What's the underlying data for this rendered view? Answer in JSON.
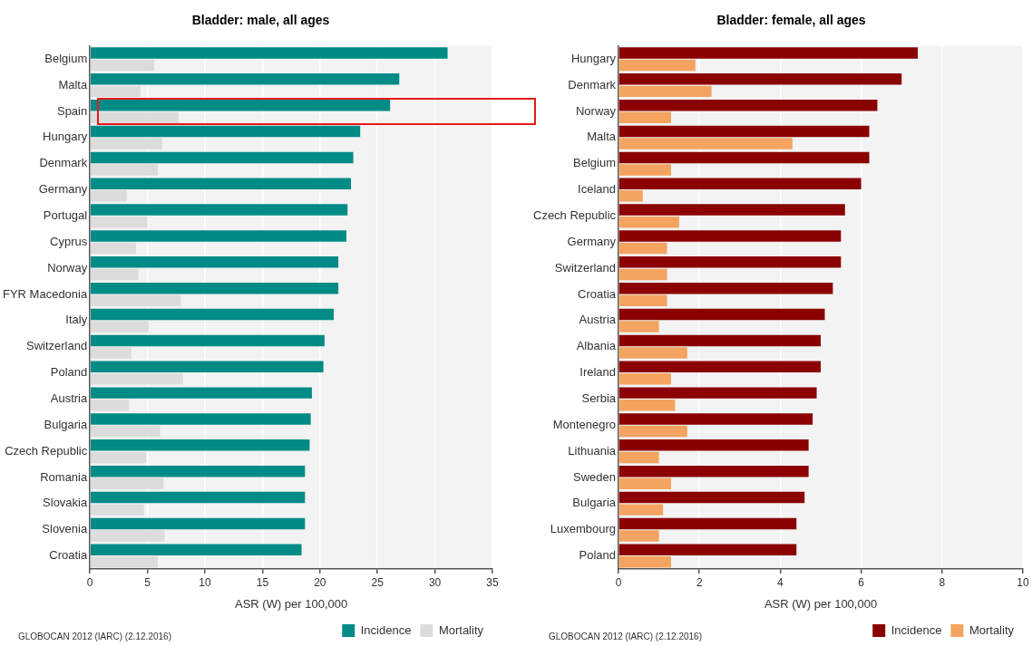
{
  "chart_data": [
    {
      "type": "bar",
      "orientation": "horizontal",
      "title": "Bladder: male, all ages",
      "xlabel": "ASR (W) per 100,000",
      "categories": [
        "Belgium",
        "Malta",
        "Spain",
        "Hungary",
        "Denmark",
        "Germany",
        "Portugal",
        "Cyprus",
        "Norway",
        "FYR Macedonia",
        "Italy",
        "Switzerland",
        "Poland",
        "Austria",
        "Bulgaria",
        "Czech Republic",
        "Romania",
        "Slovakia",
        "Slovenia",
        "Croatia"
      ],
      "series": [
        {
          "name": "Incidence",
          "color": "#008b87",
          "values": [
            31.1,
            26.9,
            26.1,
            23.5,
            22.9,
            22.7,
            22.4,
            22.3,
            21.6,
            21.6,
            21.2,
            20.4,
            20.3,
            19.3,
            19.2,
            19.1,
            18.7,
            18.7,
            18.7,
            18.4
          ]
        },
        {
          "name": "Mortality",
          "color": "#dcdcdc",
          "values": [
            5.6,
            4.4,
            7.7,
            6.3,
            5.9,
            3.2,
            5.0,
            4.0,
            4.2,
            7.9,
            5.1,
            3.6,
            8.1,
            3.4,
            6.1,
            4.9,
            6.4,
            4.7,
            6.5,
            5.9
          ]
        }
      ],
      "xlim": [
        0,
        35
      ],
      "xticks": [
        0,
        5,
        10,
        15,
        20,
        25,
        30,
        35
      ],
      "grid": "x",
      "legend": "bottom right",
      "annotations": [
        "GLOBOCAN 2012 (IARC) (2.12.2016)"
      ]
    },
    {
      "type": "bar",
      "orientation": "horizontal",
      "title": "Bladder: female, all ages",
      "xlabel": "ASR (W) per 100,000",
      "categories": [
        "Hungary",
        "Denmark",
        "Norway",
        "Malta",
        "Belgium",
        "Iceland",
        "Czech Republic",
        "Germany",
        "Switzerland",
        "Croatia",
        "Austria",
        "Albania",
        "Ireland",
        "Serbia",
        "Montenegro",
        "Lithuania",
        "Sweden",
        "Bulgaria",
        "Luxembourg",
        "Poland"
      ],
      "series": [
        {
          "name": "Incidence",
          "color": "#8b0000",
          "values": [
            7.4,
            7.0,
            6.4,
            6.2,
            6.2,
            6.0,
            5.6,
            5.5,
            5.5,
            5.3,
            5.1,
            5.0,
            5.0,
            4.9,
            4.8,
            4.7,
            4.7,
            4.6,
            4.4,
            4.4
          ]
        },
        {
          "name": "Mortality",
          "color": "#f4a460",
          "values": [
            1.9,
            2.3,
            1.3,
            4.3,
            1.3,
            0.6,
            1.5,
            1.2,
            1.2,
            1.2,
            1.0,
            1.7,
            1.3,
            1.4,
            1.7,
            1.0,
            1.3,
            1.1,
            1.0,
            1.3
          ]
        }
      ],
      "xlim": [
        0,
        10
      ],
      "xticks": [
        0,
        2,
        4,
        6,
        8,
        10
      ],
      "grid": "x",
      "legend": "bottom right",
      "annotations": [
        "GLOBOCAN 2012 (IARC) (2.12.2016)"
      ]
    }
  ]
}
